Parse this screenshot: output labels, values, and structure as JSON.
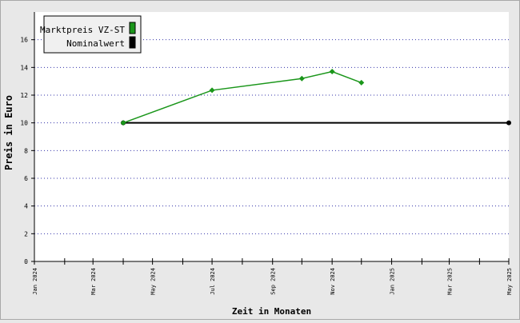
{
  "chart_data": {
    "type": "line",
    "title": "",
    "xlabel": "Zeit in Monaten",
    "ylabel": "Preis in Euro",
    "xlim": [
      "2024-01-01",
      "2025-05-01"
    ],
    "ylim": [
      0,
      18
    ],
    "y_ticks": [
      0,
      2,
      4,
      6,
      8,
      10,
      12,
      14,
      16
    ],
    "x_tick_labels": [
      {
        "date": "2024-01-01",
        "label": "Jan 2024"
      },
      {
        "date": "2024-03-01",
        "label": "Mar 2024"
      },
      {
        "date": "2024-05-01",
        "label": "May 2024"
      },
      {
        "date": "2024-07-01",
        "label": "Jul 2024"
      },
      {
        "date": "2024-09-01",
        "label": "Sep 2024"
      },
      {
        "date": "2024-11-01",
        "label": "Nov 2024"
      },
      {
        "date": "2025-01-01",
        "label": "Jan 2025"
      },
      {
        "date": "2025-03-01",
        "label": "Mar 2025"
      },
      {
        "date": "2025-05-01",
        "label": "May 2025"
      }
    ],
    "x_minor_ticks": [
      "2024-02-01",
      "2024-04-01",
      "2024-06-01",
      "2024-08-01",
      "2024-10-01",
      "2024-12-01",
      "2025-02-01",
      "2025-04-01"
    ],
    "grid": "horizontal dotted",
    "legend_position": "top-left",
    "series": [
      {
        "name": "Marktpreis VZ-ST",
        "color": "#1a961a",
        "marker": "diamond",
        "points": [
          {
            "x": "2024-04-01",
            "y": 10.0
          },
          {
            "x": "2024-07-01",
            "y": 12.35
          },
          {
            "x": "2024-10-01",
            "y": 13.2
          },
          {
            "x": "2024-11-01",
            "y": 13.7
          },
          {
            "x": "2024-12-01",
            "y": 12.9
          }
        ]
      },
      {
        "name": "Nominalwert",
        "color": "#000000",
        "marker": "circle",
        "points": [
          {
            "x": "2024-04-01",
            "y": 10.0
          },
          {
            "x": "2025-05-01",
            "y": 10.0
          }
        ]
      }
    ]
  }
}
